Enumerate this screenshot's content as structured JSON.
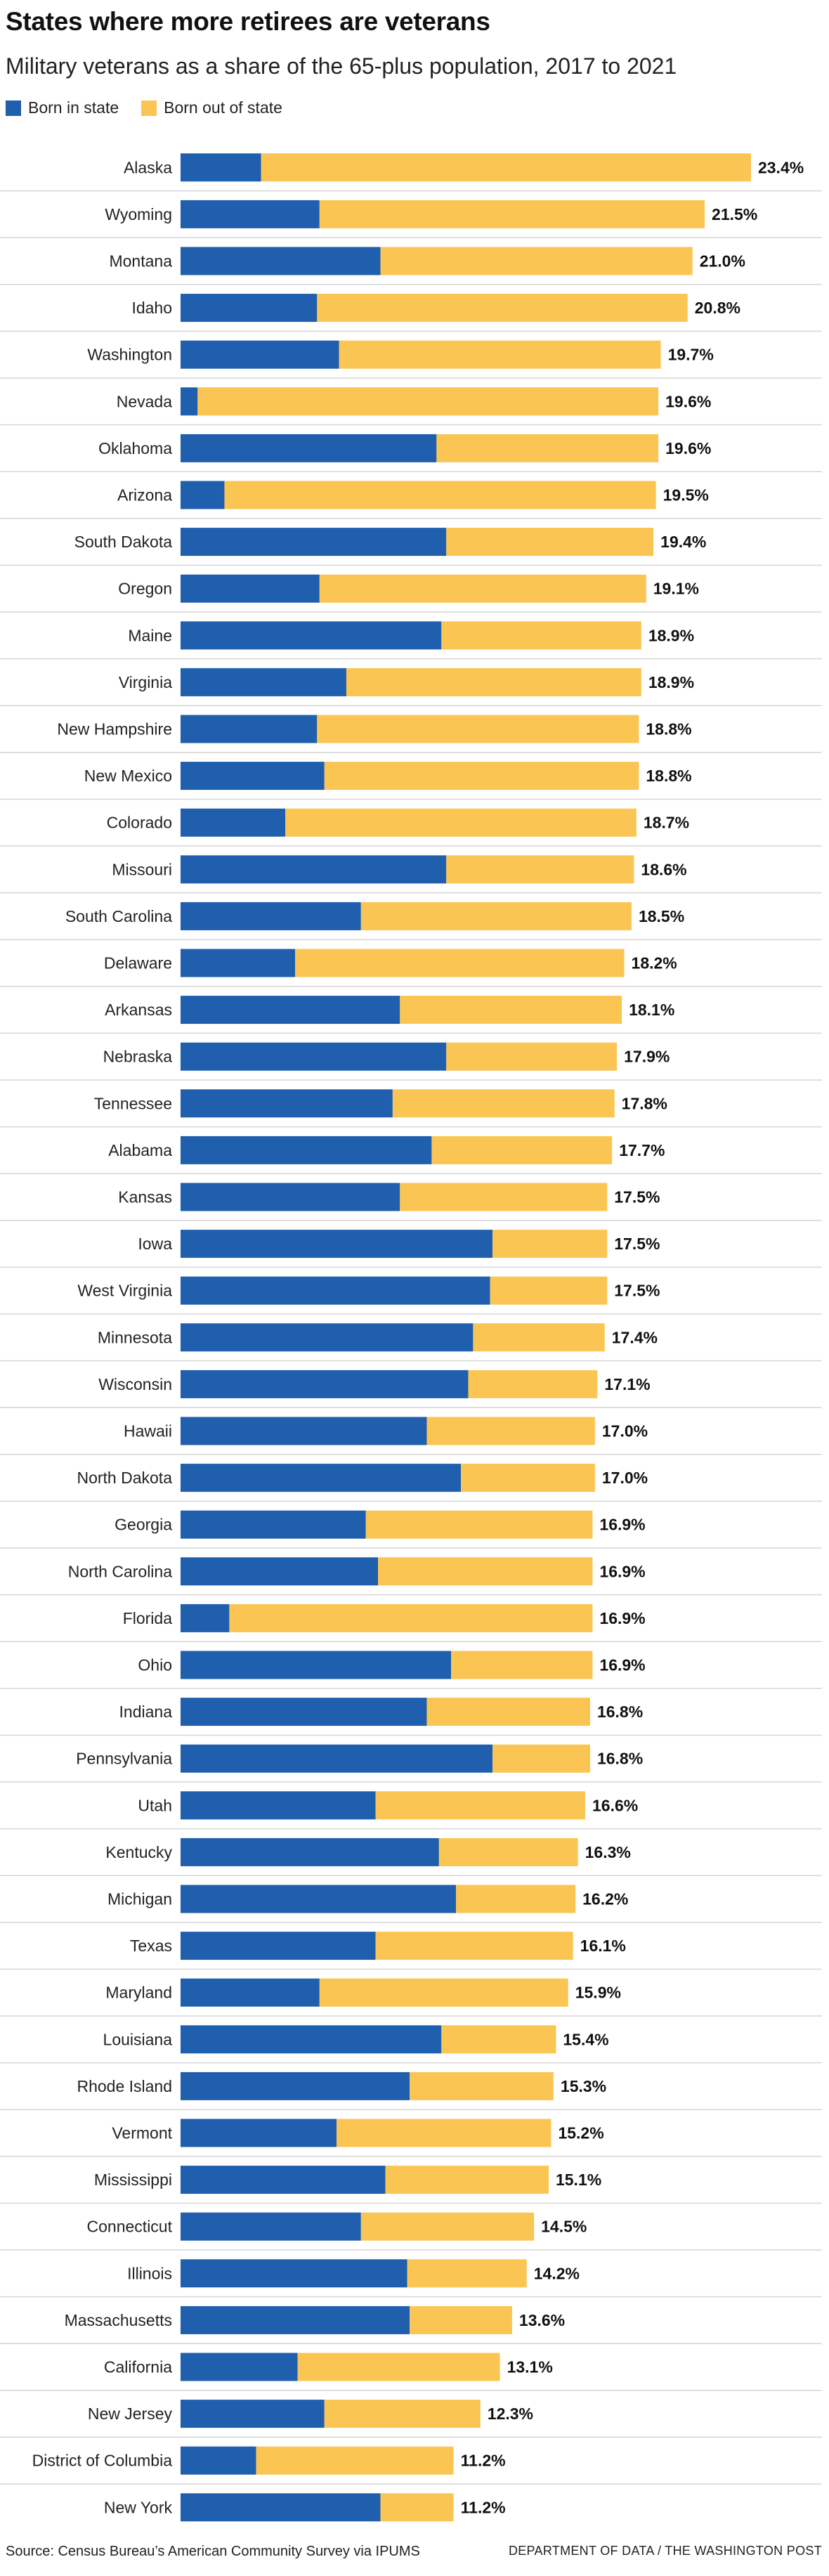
{
  "title": "States where more retirees are veterans",
  "subtitle": "Military veterans as a share of the 65-plus population, 2017 to 2021",
  "legend": [
    {
      "label": "Born in state",
      "color": "#1f5fae"
    },
    {
      "label": "Born out of state",
      "color": "#fbc553"
    }
  ],
  "footer": {
    "source": "Source: Census Bureau’s American Community Survey via IPUMS",
    "credit": "DEPARTMENT OF DATA / THE WASHINGTON POST"
  },
  "chart_data": {
    "type": "bar",
    "orientation": "horizontal",
    "stacked": true,
    "value_unit": "%",
    "xlim": [
      0,
      23.4
    ],
    "grid": false,
    "legend_position": "top-left",
    "series": [
      {
        "name": "Born in state",
        "color": "#1f5fae"
      },
      {
        "name": "Born out of state",
        "color": "#fbc553"
      }
    ],
    "rows": [
      {
        "state": "Alaska",
        "born_in": 3.3,
        "born_out": 20.1,
        "total": 23.4,
        "label": "23.4%"
      },
      {
        "state": "Wyoming",
        "born_in": 5.7,
        "born_out": 15.8,
        "total": 21.5,
        "label": "21.5%"
      },
      {
        "state": "Montana",
        "born_in": 8.2,
        "born_out": 12.8,
        "total": 21.0,
        "label": "21.0%"
      },
      {
        "state": "Idaho",
        "born_in": 5.6,
        "born_out": 15.2,
        "total": 20.8,
        "label": "20.8%"
      },
      {
        "state": "Washington",
        "born_in": 6.5,
        "born_out": 13.2,
        "total": 19.7,
        "label": "19.7%"
      },
      {
        "state": "Nevada",
        "born_in": 0.7,
        "born_out": 18.9,
        "total": 19.6,
        "label": "19.6%"
      },
      {
        "state": "Oklahoma",
        "born_in": 10.5,
        "born_out": 9.1,
        "total": 19.6,
        "label": "19.6%"
      },
      {
        "state": "Arizona",
        "born_in": 1.8,
        "born_out": 17.7,
        "total": 19.5,
        "label": "19.5%"
      },
      {
        "state": "South Dakota",
        "born_in": 10.9,
        "born_out": 8.5,
        "total": 19.4,
        "label": "19.4%"
      },
      {
        "state": "Oregon",
        "born_in": 5.7,
        "born_out": 13.4,
        "total": 19.1,
        "label": "19.1%"
      },
      {
        "state": "Maine",
        "born_in": 10.7,
        "born_out": 8.2,
        "total": 18.9,
        "label": "18.9%"
      },
      {
        "state": "Virginia",
        "born_in": 6.8,
        "born_out": 12.1,
        "total": 18.9,
        "label": "18.9%"
      },
      {
        "state": "New Hampshire",
        "born_in": 5.6,
        "born_out": 13.2,
        "total": 18.8,
        "label": "18.8%"
      },
      {
        "state": "New Mexico",
        "born_in": 5.9,
        "born_out": 12.9,
        "total": 18.8,
        "label": "18.8%"
      },
      {
        "state": "Colorado",
        "born_in": 4.3,
        "born_out": 14.4,
        "total": 18.7,
        "label": "18.7%"
      },
      {
        "state": "Missouri",
        "born_in": 10.9,
        "born_out": 7.7,
        "total": 18.6,
        "label": "18.6%"
      },
      {
        "state": "South Carolina",
        "born_in": 7.4,
        "born_out": 11.1,
        "total": 18.5,
        "label": "18.5%"
      },
      {
        "state": "Delaware",
        "born_in": 4.7,
        "born_out": 13.5,
        "total": 18.2,
        "label": "18.2%"
      },
      {
        "state": "Arkansas",
        "born_in": 9.0,
        "born_out": 9.1,
        "total": 18.1,
        "label": "18.1%"
      },
      {
        "state": "Nebraska",
        "born_in": 10.9,
        "born_out": 7.0,
        "total": 17.9,
        "label": "17.9%"
      },
      {
        "state": "Tennessee",
        "born_in": 8.7,
        "born_out": 9.1,
        "total": 17.8,
        "label": "17.8%"
      },
      {
        "state": "Alabama",
        "born_in": 10.3,
        "born_out": 7.4,
        "total": 17.7,
        "label": "17.7%"
      },
      {
        "state": "Kansas",
        "born_in": 9.0,
        "born_out": 8.5,
        "total": 17.5,
        "label": "17.5%"
      },
      {
        "state": "Iowa",
        "born_in": 12.8,
        "born_out": 4.7,
        "total": 17.5,
        "label": "17.5%"
      },
      {
        "state": "West Virginia",
        "born_in": 12.7,
        "born_out": 4.8,
        "total": 17.5,
        "label": "17.5%"
      },
      {
        "state": "Minnesota",
        "born_in": 12.0,
        "born_out": 5.4,
        "total": 17.4,
        "label": "17.4%"
      },
      {
        "state": "Wisconsin",
        "born_in": 11.8,
        "born_out": 5.3,
        "total": 17.1,
        "label": "17.1%"
      },
      {
        "state": "Hawaii",
        "born_in": 10.1,
        "born_out": 6.9,
        "total": 17.0,
        "label": "17.0%"
      },
      {
        "state": "North Dakota",
        "born_in": 11.5,
        "born_out": 5.5,
        "total": 17.0,
        "label": "17.0%"
      },
      {
        "state": "Georgia",
        "born_in": 7.6,
        "born_out": 9.3,
        "total": 16.9,
        "label": "16.9%"
      },
      {
        "state": "North Carolina",
        "born_in": 8.1,
        "born_out": 8.8,
        "total": 16.9,
        "label": "16.9%"
      },
      {
        "state": "Florida",
        "born_in": 2.0,
        "born_out": 14.9,
        "total": 16.9,
        "label": "16.9%"
      },
      {
        "state": "Ohio",
        "born_in": 11.1,
        "born_out": 5.8,
        "total": 16.9,
        "label": "16.9%"
      },
      {
        "state": "Indiana",
        "born_in": 10.1,
        "born_out": 6.7,
        "total": 16.8,
        "label": "16.8%"
      },
      {
        "state": "Pennsylvania",
        "born_in": 12.8,
        "born_out": 4.0,
        "total": 16.8,
        "label": "16.8%"
      },
      {
        "state": "Utah",
        "born_in": 8.0,
        "born_out": 8.6,
        "total": 16.6,
        "label": "16.6%"
      },
      {
        "state": "Kentucky",
        "born_in": 10.6,
        "born_out": 5.7,
        "total": 16.3,
        "label": "16.3%"
      },
      {
        "state": "Michigan",
        "born_in": 11.3,
        "born_out": 4.9,
        "total": 16.2,
        "label": "16.2%"
      },
      {
        "state": "Texas",
        "born_in": 8.0,
        "born_out": 8.1,
        "total": 16.1,
        "label": "16.1%"
      },
      {
        "state": "Maryland",
        "born_in": 5.7,
        "born_out": 10.2,
        "total": 15.9,
        "label": "15.9%"
      },
      {
        "state": "Louisiana",
        "born_in": 10.7,
        "born_out": 4.7,
        "total": 15.4,
        "label": "15.4%"
      },
      {
        "state": "Rhode Island",
        "born_in": 9.4,
        "born_out": 5.9,
        "total": 15.3,
        "label": "15.3%"
      },
      {
        "state": "Vermont",
        "born_in": 6.4,
        "born_out": 8.8,
        "total": 15.2,
        "label": "15.2%"
      },
      {
        "state": "Mississippi",
        "born_in": 8.4,
        "born_out": 6.7,
        "total": 15.1,
        "label": "15.1%"
      },
      {
        "state": "Connecticut",
        "born_in": 7.4,
        "born_out": 7.1,
        "total": 14.5,
        "label": "14.5%"
      },
      {
        "state": "Illinois",
        "born_in": 9.3,
        "born_out": 4.9,
        "total": 14.2,
        "label": "14.2%"
      },
      {
        "state": "Massachusetts",
        "born_in": 9.4,
        "born_out": 4.2,
        "total": 13.6,
        "label": "13.6%"
      },
      {
        "state": "California",
        "born_in": 4.8,
        "born_out": 8.3,
        "total": 13.1,
        "label": "13.1%"
      },
      {
        "state": "New Jersey",
        "born_in": 5.9,
        "born_out": 6.4,
        "total": 12.3,
        "label": "12.3%"
      },
      {
        "state": "District of Columbia",
        "born_in": 3.1,
        "born_out": 8.1,
        "total": 11.2,
        "label": "11.2%"
      },
      {
        "state": "New York",
        "born_in": 8.2,
        "born_out": 3.0,
        "total": 11.2,
        "label": "11.2%"
      }
    ]
  }
}
